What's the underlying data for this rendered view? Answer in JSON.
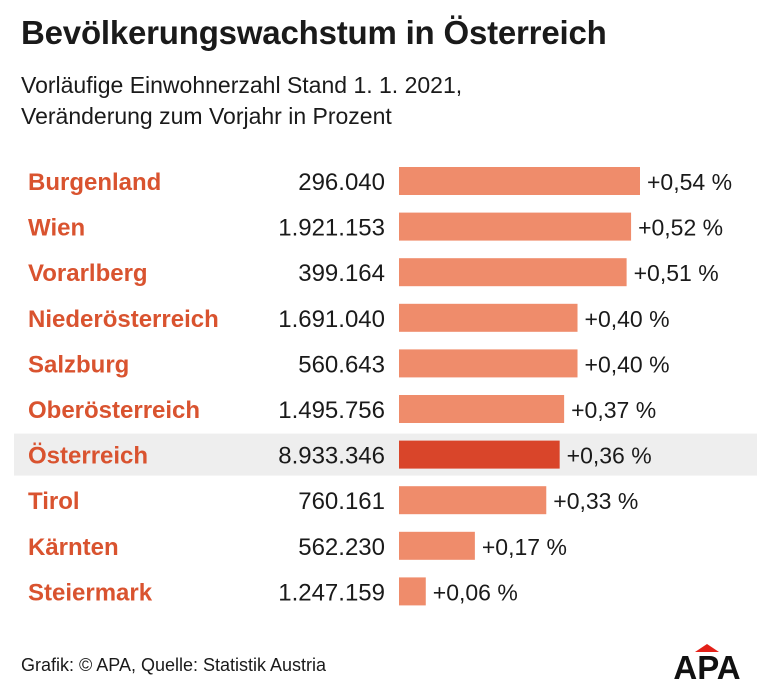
{
  "header": {
    "title": "Bevölkerungswachstum in Österreich",
    "subtitle_line1": "Vorläufige Einwohnerzahl Stand 1. 1. 2021,",
    "subtitle_line2": "Veränderung zum Vorjahr in Prozent"
  },
  "footer": {
    "source": "Grafik: © APA, Quelle: Statistik Austria",
    "logo_text": "APA"
  },
  "colors": {
    "label": "#d9532f",
    "bar": "#ef8c6b",
    "bar_highlight": "#d9452a",
    "highlight_bg": "#eeeeee",
    "logo_accent": "#e32119"
  },
  "chart_data": {
    "type": "bar",
    "orientation": "horizontal",
    "title": "Bevölkerungswachstum in Österreich",
    "xlabel": "Veränderung zum Vorjahr in Prozent",
    "ylabel": "",
    "xlim": [
      0,
      0.54
    ],
    "categories": [
      "Burgenland",
      "Wien",
      "Vorarlberg",
      "Niederösterreich",
      "Salzburg",
      "Oberösterreich",
      "Österreich",
      "Tirol",
      "Kärnten",
      "Steiermark"
    ],
    "population": [
      "296.040",
      "1.921.153",
      "399.164",
      "1.691.040",
      "560.643",
      "1.495.756",
      "8.933.346",
      "760.161",
      "562.230",
      "1.247.159"
    ],
    "values": [
      0.54,
      0.52,
      0.51,
      0.4,
      0.4,
      0.37,
      0.36,
      0.33,
      0.17,
      0.06
    ],
    "value_labels": [
      "+0,54 %",
      "+0,52 %",
      "+0,51 %",
      "+0,40 %",
      "+0,40 %",
      "+0,37 %",
      "+0,36 %",
      "+0,33 %",
      "+0,17 %",
      "+0,06 %"
    ],
    "highlight": "Österreich"
  }
}
